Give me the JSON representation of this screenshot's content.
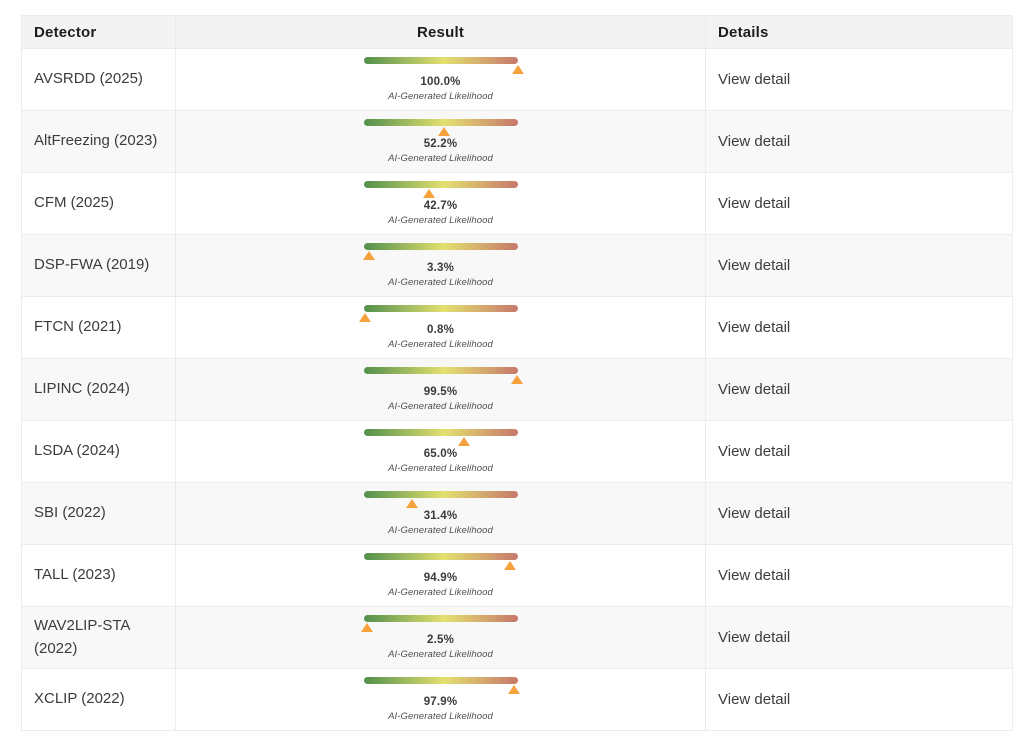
{
  "table": {
    "headers": {
      "detector": "Detector",
      "result": "Result",
      "details": "Details"
    },
    "result_sublabel": "AI-Generated Likelihood",
    "view_detail_label": "View detail",
    "rows": [
      {
        "detector": "AVSRDD (2025)",
        "percent": 100.0,
        "percent_label": "100.0%"
      },
      {
        "detector": "AltFreezing (2023)",
        "percent": 52.2,
        "percent_label": "52.2%"
      },
      {
        "detector": "CFM (2025)",
        "percent": 42.7,
        "percent_label": "42.7%"
      },
      {
        "detector": "DSP-FWA (2019)",
        "percent": 3.3,
        "percent_label": "3.3%"
      },
      {
        "detector": "FTCN (2021)",
        "percent": 0.8,
        "percent_label": "0.8%"
      },
      {
        "detector": "LIPINC (2024)",
        "percent": 99.5,
        "percent_label": "99.5%"
      },
      {
        "detector": "LSDA (2024)",
        "percent": 65.0,
        "percent_label": "65.0%"
      },
      {
        "detector": "SBI (2022)",
        "percent": 31.4,
        "percent_label": "31.4%"
      },
      {
        "detector": "TALL (2023)",
        "percent": 94.9,
        "percent_label": "94.9%"
      },
      {
        "detector": "WAV2LIP-STA (2022)",
        "percent": 2.5,
        "percent_label": "2.5%"
      },
      {
        "detector": "XCLIP (2022)",
        "percent": 97.9,
        "percent_label": "97.9%"
      }
    ]
  },
  "chart_data": {
    "type": "table",
    "title": "",
    "columns": [
      "Detector",
      "Result",
      "Details"
    ],
    "categories": [
      "AVSRDD (2025)",
      "AltFreezing (2023)",
      "CFM (2025)",
      "DSP-FWA (2019)",
      "FTCN (2021)",
      "LIPINC (2024)",
      "LSDA (2024)",
      "SBI (2022)",
      "TALL (2023)",
      "WAV2LIP-STA (2022)",
      "XCLIP (2022)"
    ],
    "values": [
      100.0,
      52.2,
      42.7,
      3.3,
      0.8,
      99.5,
      65.0,
      31.4,
      94.9,
      2.5,
      97.9
    ],
    "value_label": "AI-Generated Likelihood",
    "value_range": [
      0,
      100
    ]
  },
  "colors": {
    "gradient_start": "#52904d",
    "gradient_mid": "#e3e06f",
    "gradient_end": "#c7786c",
    "marker": "#f6a23c",
    "header_bg": "#f3f3f3",
    "alt_row_bg": "#f8f8f8",
    "border": "#ececec"
  }
}
